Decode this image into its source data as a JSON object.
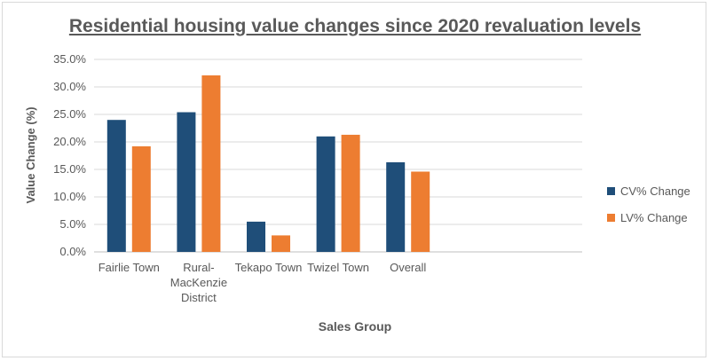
{
  "chart_data": {
    "type": "bar",
    "title": "Residential housing value changes since 2020 revaluation levels",
    "xlabel": "Sales Group",
    "ylabel": "Value Change (%)",
    "categories": [
      "Fairlie Town",
      "Rural-MacKenzie District",
      "Tekapo Town",
      "Twizel Town",
      "Overall"
    ],
    "category_lines": [
      [
        "Fairlie Town"
      ],
      [
        "Rural-",
        "MacKenzie",
        "District"
      ],
      [
        "Tekapo Town"
      ],
      [
        "Twizel Town"
      ],
      [
        "Overall"
      ]
    ],
    "series": [
      {
        "name": "CV% Change",
        "values": [
          24.0,
          25.4,
          5.5,
          21.0,
          16.3
        ],
        "color": "#1f4e79"
      },
      {
        "name": "LV% Change",
        "values": [
          19.2,
          32.1,
          3.0,
          21.3,
          14.6
        ],
        "color": "#ed7d31"
      }
    ],
    "ylim": [
      0,
      35
    ],
    "yticks": [
      0,
      5,
      10,
      15,
      20,
      25,
      30,
      35
    ],
    "ytick_labels": [
      "0.0%",
      "5.0%",
      "10.0%",
      "15.0%",
      "20.0%",
      "25.0%",
      "30.0%",
      "35.0%"
    ],
    "grid": true,
    "legend_position": "right"
  }
}
